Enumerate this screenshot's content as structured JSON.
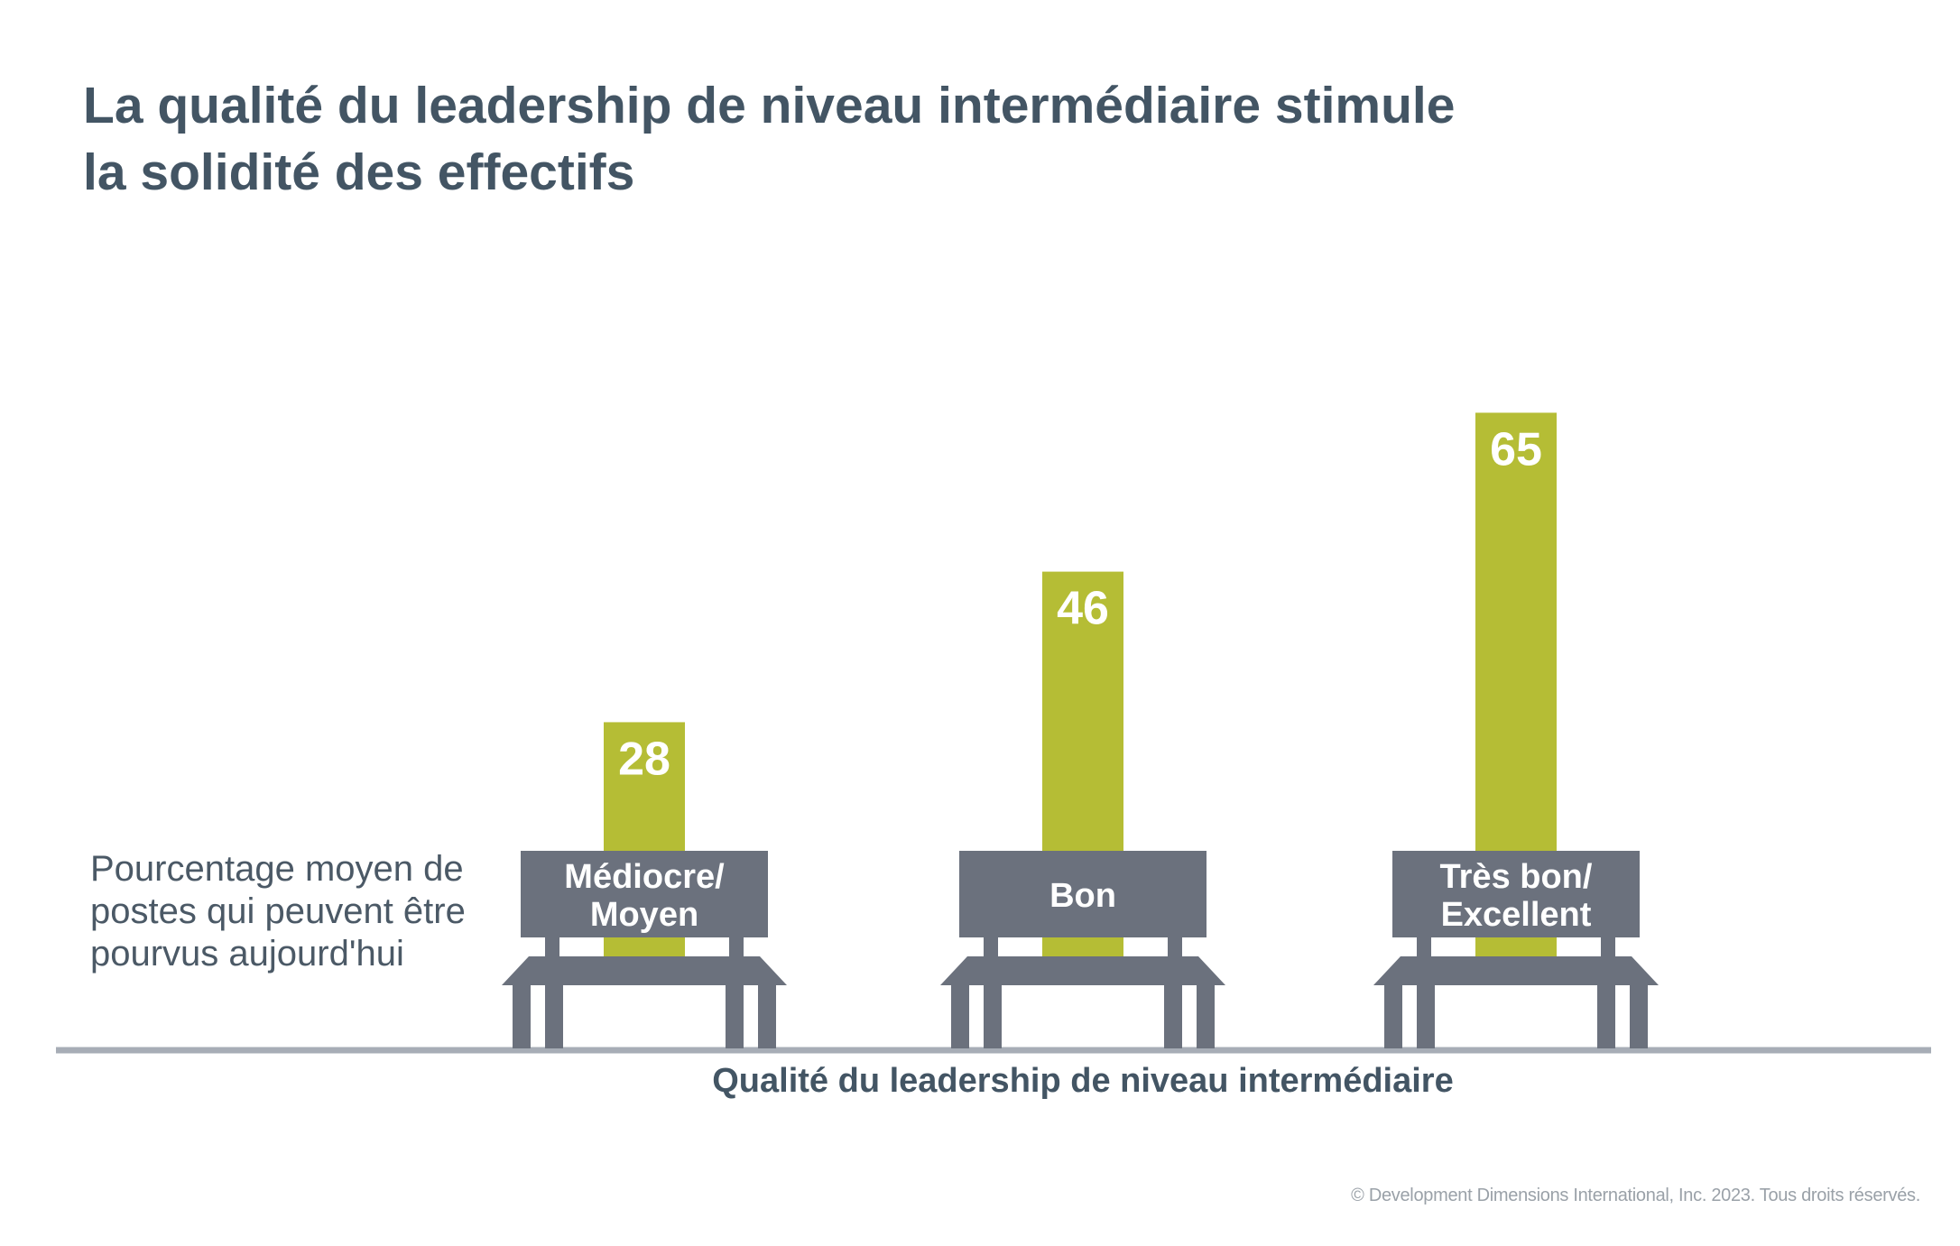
{
  "title_lines": [
    "La qualité du leadership de niveau intermédiaire stimule",
    "la solidité des effectifs"
  ],
  "ylabel_lines": [
    "Pourcentage moyen de",
    "postes qui peuvent être",
    "pourvus aujourd'hui"
  ],
  "xlabel": "Qualité du leadership de niveau intermédiaire",
  "footer": "© Development Dimensions International, Inc. 2023. Tous droits réservés.",
  "colors": {
    "bar": "#b5bd35",
    "bench": "#6b717d",
    "baseline": "#a7adb6",
    "title": "#435564",
    "value_text": "#ffffff"
  },
  "chart_data": {
    "type": "bar",
    "categories": [
      [
        "Médiocre/",
        "Moyen"
      ],
      [
        "Bon"
      ],
      [
        "Très bon/",
        "Excellent"
      ]
    ],
    "values": [
      28,
      46,
      65
    ],
    "value_labels": [
      "28",
      "46",
      "65"
    ],
    "title": "La qualité du leadership de niveau intermédiaire stimule la solidité des effectifs",
    "xlabel": "Qualité du leadership de niveau intermédiaire",
    "ylabel": "Pourcentage moyen de postes qui peuvent être pourvus aujourd'hui",
    "grid": false,
    "legend": "none"
  }
}
